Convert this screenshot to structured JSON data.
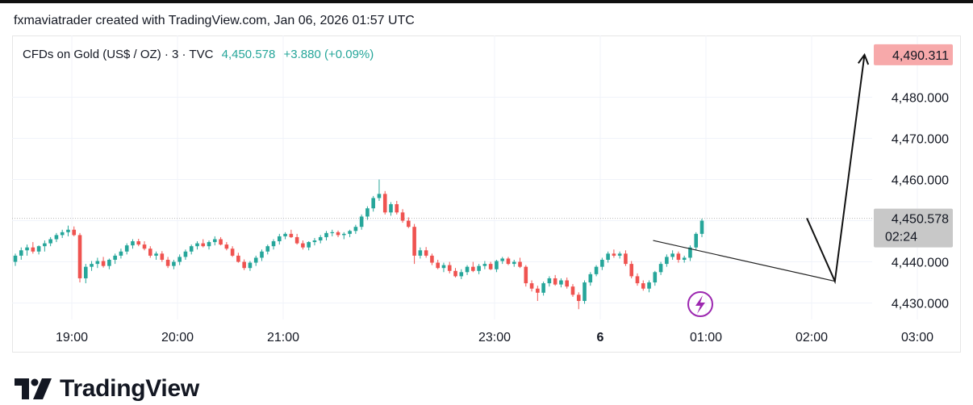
{
  "header": {
    "credit": "fxmaviatrader created with TradingView.com, Jan 06, 2026 01:57 UTC"
  },
  "legend": {
    "symbol": "CFDs on Gold (US$ / OZ) · 3 · TVC",
    "last": "4,450.578",
    "change": "+3.880 (+0.09%)"
  },
  "brand": {
    "name": "TradingView",
    "icon": "tradingview-logo-icon"
  },
  "badges": {
    "target": {
      "price": "4,490.311",
      "value": 4490.311,
      "bg": "#f7a9aa"
    },
    "current": {
      "price": "4,450.578",
      "countdown": "02:24",
      "value": 4450.578,
      "bg": "#c8c8c8"
    }
  },
  "colors": {
    "up": "#26a69a",
    "down": "#ef5350",
    "text": "#131722",
    "grid": "#f0f3fa"
  },
  "chart_data": {
    "type": "candlestick",
    "interval_minutes": 3,
    "ylim": [
      4426,
      4494
    ],
    "y_ticks": [
      4430,
      4440,
      4450,
      4460,
      4470,
      4480
    ],
    "y_tick_labels": [
      "4,430.000",
      "4,440.000",
      "4,450.000",
      "4,460.000",
      "4,470.000",
      "4,480.000"
    ],
    "x_ticks": [
      {
        "label": "19:00",
        "hour": 19
      },
      {
        "label": "20:00",
        "hour": 20
      },
      {
        "label": "21:00",
        "hour": 21
      },
      {
        "label": "23:00",
        "hour": 23
      },
      {
        "label": "6",
        "hour": 24,
        "bold": true
      },
      {
        "label": "01:00",
        "hour": 25
      },
      {
        "label": "02:00",
        "hour": 26
      },
      {
        "label": "03:00",
        "hour": 27
      }
    ],
    "candles": [
      [
        4440.0,
        4442.0,
        4439.0,
        4441.5
      ],
      [
        4441.5,
        4443.5,
        4440.5,
        4442.8
      ],
      [
        4442.8,
        4444.2,
        4441.5,
        4443.5
      ],
      [
        4443.5,
        4444.8,
        4442.0,
        4442.5
      ],
      [
        4442.5,
        4444.0,
        4441.8,
        4443.8
      ],
      [
        4443.8,
        4445.2,
        4442.5,
        4444.5
      ],
      [
        4444.5,
        4446.0,
        4443.8,
        4445.5
      ],
      [
        4445.5,
        4447.0,
        4444.8,
        4446.5
      ],
      [
        4446.5,
        4447.8,
        4445.8,
        4447.2
      ],
      [
        4447.2,
        4448.8,
        4446.2,
        4447.8
      ],
      [
        4447.8,
        4448.6,
        4446.2,
        4446.5
      ],
      [
        4446.5,
        4447.0,
        4435.0,
        4436.0
      ],
      [
        4436.0,
        4439.5,
        4434.8,
        4438.8
      ],
      [
        4438.8,
        4440.2,
        4437.8,
        4439.5
      ],
      [
        4439.5,
        4441.0,
        4438.5,
        4440.2
      ],
      [
        4440.2,
        4441.2,
        4438.6,
        4439.0
      ],
      [
        4439.0,
        4440.8,
        4438.2,
        4440.5
      ],
      [
        4440.5,
        4442.0,
        4439.5,
        4441.5
      ],
      [
        4441.5,
        4443.2,
        4440.8,
        4442.5
      ],
      [
        4442.5,
        4444.5,
        4441.8,
        4444.0
      ],
      [
        4444.0,
        4445.5,
        4443.2,
        4445.0
      ],
      [
        4445.0,
        4445.6,
        4443.8,
        4444.2
      ],
      [
        4444.2,
        4445.0,
        4442.8,
        4443.2
      ],
      [
        4443.2,
        4443.8,
        4441.0,
        4441.5
      ],
      [
        4441.5,
        4442.5,
        4440.5,
        4442.0
      ],
      [
        4442.0,
        4442.6,
        4440.0,
        4440.5
      ],
      [
        4440.5,
        4441.2,
        4438.5,
        4439.0
      ],
      [
        4439.0,
        4440.5,
        4438.2,
        4440.0
      ],
      [
        4440.0,
        4441.8,
        4439.2,
        4441.2
      ],
      [
        4441.2,
        4443.0,
        4440.5,
        4442.5
      ],
      [
        4442.5,
        4444.2,
        4441.8,
        4443.8
      ],
      [
        4443.8,
        4445.0,
        4443.0,
        4444.5
      ],
      [
        4444.5,
        4445.5,
        4443.5,
        4443.8
      ],
      [
        4443.8,
        4445.2,
        4443.0,
        4444.8
      ],
      [
        4444.8,
        4446.2,
        4444.0,
        4445.5
      ],
      [
        4445.5,
        4446.0,
        4444.0,
        4444.2
      ],
      [
        4444.2,
        4444.8,
        4442.8,
        4443.2
      ],
      [
        4443.2,
        4443.8,
        4441.2,
        4441.5
      ],
      [
        4441.5,
        4442.2,
        4439.8,
        4440.0
      ],
      [
        4440.0,
        4440.6,
        4438.0,
        4438.5
      ],
      [
        4438.5,
        4440.2,
        4437.8,
        4439.8
      ],
      [
        4439.8,
        4441.5,
        4439.0,
        4441.0
      ],
      [
        4441.0,
        4443.0,
        4440.2,
        4442.5
      ],
      [
        4442.5,
        4444.2,
        4441.8,
        4443.8
      ],
      [
        4443.8,
        4445.5,
        4443.0,
        4445.0
      ],
      [
        4445.0,
        4446.8,
        4444.2,
        4446.2
      ],
      [
        4446.2,
        4447.2,
        4445.5,
        4446.8
      ],
      [
        4446.8,
        4447.8,
        4445.8,
        4446.0
      ],
      [
        4446.0,
        4446.8,
        4444.2,
        4444.5
      ],
      [
        4444.5,
        4445.2,
        4443.0,
        4443.5
      ],
      [
        4443.5,
        4445.0,
        4442.8,
        4444.8
      ],
      [
        4444.8,
        4445.8,
        4444.0,
        4445.2
      ],
      [
        4445.2,
        4446.5,
        4444.5,
        4446.0
      ],
      [
        4446.0,
        4447.5,
        4445.2,
        4447.0
      ],
      [
        4447.0,
        4447.8,
        4446.2,
        4447.2
      ],
      [
        4447.2,
        4447.6,
        4446.0,
        4446.5
      ],
      [
        4446.5,
        4447.2,
        4445.5,
        4446.8
      ],
      [
        4446.8,
        4447.8,
        4446.0,
        4447.5
      ],
      [
        4447.5,
        4449.0,
        4446.8,
        4448.5
      ],
      [
        4448.5,
        4451.5,
        4447.8,
        4451.0
      ],
      [
        4451.0,
        4453.5,
        4450.2,
        4453.0
      ],
      [
        4453.0,
        4456.0,
        4452.2,
        4455.5
      ],
      [
        4455.5,
        4460.0,
        4454.8,
        4456.5
      ],
      [
        4456.5,
        4457.2,
        4451.5,
        4452.0
      ],
      [
        4452.0,
        4454.5,
        4451.2,
        4454.0
      ],
      [
        4454.0,
        4454.8,
        4451.5,
        4452.0
      ],
      [
        4452.0,
        4452.8,
        4449.5,
        4450.0
      ],
      [
        4450.0,
        4450.8,
        4448.2,
        4448.5
      ],
      [
        4448.5,
        4449.2,
        4439.5,
        4441.5
      ],
      [
        4441.5,
        4443.5,
        4440.8,
        4442.8
      ],
      [
        4442.8,
        4443.6,
        4441.0,
        4441.5
      ],
      [
        4441.5,
        4442.0,
        4439.2,
        4439.8
      ],
      [
        4439.8,
        4440.5,
        4438.2,
        4438.5
      ],
      [
        4438.5,
        4439.8,
        4437.5,
        4439.2
      ],
      [
        4439.2,
        4440.0,
        4437.2,
        4437.8
      ],
      [
        4437.8,
        4438.5,
        4436.2,
        4436.5
      ],
      [
        4436.5,
        4438.2,
        4435.8,
        4437.5
      ],
      [
        4437.5,
        4439.2,
        4436.8,
        4438.8
      ],
      [
        4438.8,
        4440.0,
        4437.5,
        4437.8
      ],
      [
        4437.8,
        4439.5,
        4437.0,
        4439.0
      ],
      [
        4439.0,
        4440.2,
        4438.2,
        4439.5
      ],
      [
        4439.5,
        4440.0,
        4438.0,
        4438.2
      ],
      [
        4438.2,
        4440.5,
        4437.5,
        4440.2
      ],
      [
        4440.2,
        4441.2,
        4439.5,
        4440.8
      ],
      [
        4440.8,
        4441.2,
        4439.2,
        4439.5
      ],
      [
        4439.5,
        4440.5,
        4438.8,
        4440.0
      ],
      [
        4440.0,
        4441.0,
        4438.5,
        4438.8
      ],
      [
        4438.8,
        4439.2,
        4434.0,
        4434.8
      ],
      [
        4434.8,
        4435.5,
        4432.8,
        4433.5
      ],
      [
        4433.5,
        4434.2,
        4430.5,
        4432.5
      ],
      [
        4432.5,
        4435.2,
        4431.8,
        4434.8
      ],
      [
        4434.8,
        4436.5,
        4434.0,
        4436.0
      ],
      [
        4436.0,
        4436.8,
        4434.2,
        4434.5
      ],
      [
        4434.5,
        4436.0,
        4433.8,
        4435.5
      ],
      [
        4435.5,
        4436.2,
        4433.5,
        4434.0
      ],
      [
        4434.0,
        4434.6,
        4431.5,
        4432.0
      ],
      [
        4432.0,
        4432.6,
        4428.5,
        4430.5
      ],
      [
        4430.5,
        4435.5,
        4429.8,
        4435.0
      ],
      [
        4435.0,
        4437.5,
        4434.2,
        4437.0
      ],
      [
        4437.0,
        4439.2,
        4436.5,
        4438.8
      ],
      [
        4438.8,
        4441.0,
        4438.0,
        4440.5
      ],
      [
        4440.5,
        4442.5,
        4439.8,
        4442.0
      ],
      [
        4442.0,
        4443.0,
        4441.0,
        4441.5
      ],
      [
        4441.5,
        4442.5,
        4440.8,
        4442.0
      ],
      [
        4442.0,
        4442.8,
        4439.0,
        4439.5
      ],
      [
        4439.5,
        4440.2,
        4436.0,
        4436.5
      ],
      [
        4436.5,
        4437.2,
        4434.2,
        4434.8
      ],
      [
        4434.8,
        4435.5,
        4433.0,
        4433.5
      ],
      [
        4433.5,
        4435.5,
        4432.6,
        4435.0
      ],
      [
        4435.0,
        4437.8,
        4434.2,
        4437.5
      ],
      [
        4437.5,
        4440.0,
        4436.8,
        4439.5
      ],
      [
        4439.5,
        4441.8,
        4438.8,
        4441.2
      ],
      [
        4441.2,
        4442.8,
        4440.5,
        4442.0
      ],
      [
        4442.0,
        4442.5,
        4439.8,
        4440.5
      ],
      [
        4440.5,
        4441.5,
        4439.8,
        4441.0
      ],
      [
        4441.0,
        4444.0,
        4440.2,
        4443.5
      ],
      [
        4443.5,
        4447.2,
        4442.8,
        4446.8
      ],
      [
        4446.8,
        4450.5,
        4446.0,
        4450.0
      ]
    ],
    "trendline": {
      "start": {
        "hour": 24.5,
        "price": 4445.2
      },
      "end": {
        "hour": 26.22,
        "price": 4435.3
      }
    },
    "projection": [
      {
        "hour": 25.955,
        "price": 4450.6
      },
      {
        "hour": 26.22,
        "price": 4435.3
      },
      {
        "hour": 26.5,
        "price": 4490.3
      }
    ]
  }
}
